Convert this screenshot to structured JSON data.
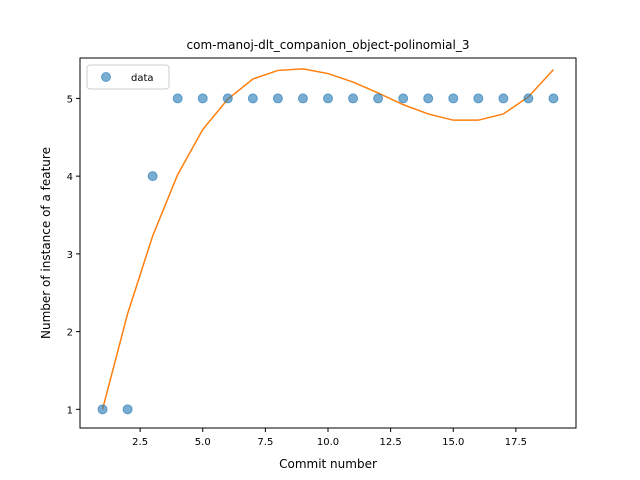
{
  "chart_data": {
    "type": "scatter",
    "title": "com-manoj-dlt_companion_object-polinomial_3",
    "xlabel": "Commit number",
    "ylabel": "Number of instance of a feature",
    "xlim": [
      0.1,
      19.9
    ],
    "ylim": [
      0.76,
      5.52
    ],
    "x_ticks": [
      2.5,
      5.0,
      7.5,
      10.0,
      12.5,
      15.0,
      17.5
    ],
    "x_tick_labels": [
      "2.5",
      "5.0",
      "7.5",
      "10.0",
      "12.5",
      "15.0",
      "17.5"
    ],
    "y_ticks": [
      1,
      2,
      3,
      4,
      5
    ],
    "y_tick_labels": [
      "1",
      "2",
      "3",
      "4",
      "5"
    ],
    "grid": false,
    "legend": {
      "position": "top-left",
      "entries": [
        "data"
      ]
    },
    "series": [
      {
        "name": "data",
        "kind": "scatter",
        "color": "#1f77b4",
        "x": [
          1,
          2,
          3,
          4,
          5,
          6,
          7,
          8,
          9,
          10,
          11,
          12,
          13,
          14,
          15,
          16,
          17,
          18,
          19
        ],
        "y": [
          1,
          1,
          4,
          5,
          5,
          5,
          5,
          5,
          5,
          5,
          5,
          5,
          5,
          5,
          5,
          5,
          5,
          5,
          5
        ]
      },
      {
        "kind": "line",
        "color": "#ff7f0e",
        "x": [
          1,
          2,
          3,
          4,
          5,
          6,
          7,
          8,
          9,
          10,
          11,
          12,
          13,
          14,
          15,
          16,
          17,
          18,
          19
        ],
        "y": [
          1.0,
          2.23,
          3.23,
          4.02,
          4.6,
          4.99,
          5.25,
          5.36,
          5.38,
          5.32,
          5.21,
          5.07,
          4.92,
          4.8,
          4.72,
          4.72,
          4.8,
          5.02,
          5.37
        ]
      }
    ]
  }
}
